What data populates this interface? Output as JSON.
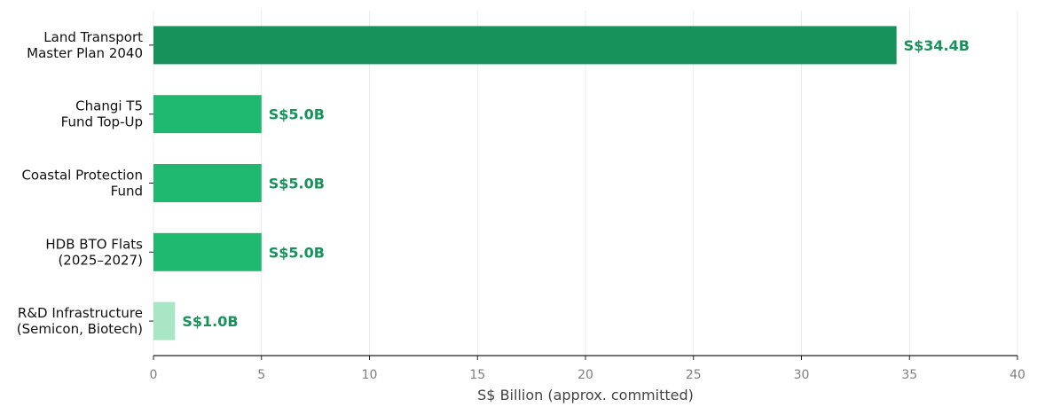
{
  "chart_data": {
    "type": "bar",
    "orientation": "horizontal",
    "title": "",
    "xlabel": "S$ Billion (approx. committed)",
    "ylabel": "",
    "xlim": [
      0,
      40
    ],
    "xticks": [
      0,
      5,
      10,
      15,
      20,
      25,
      30,
      35,
      40
    ],
    "grid": "vertical",
    "legend": "none",
    "categories": [
      [
        "Land Transport",
        "Master Plan 2040"
      ],
      [
        "Changi T5",
        "Fund Top-Up"
      ],
      [
        "Coastal Protection",
        "Fund"
      ],
      [
        "HDB BTO Flats",
        "(2025–2027)"
      ],
      [
        "R&D Infrastructure",
        "(Semicon, Biotech)"
      ]
    ],
    "values": [
      34.4,
      5.0,
      5.0,
      5.0,
      1.0
    ],
    "data_labels": [
      "S$34.4B",
      "S$5.0B",
      "S$5.0B",
      "S$5.0B",
      "S$1.0B"
    ],
    "bar_colors": [
      "#17925a",
      "#1eb96f",
      "#1eb96f",
      "#1eb96f",
      "#a8e6c5"
    ],
    "label_color": "#17925a",
    "gridline_color": "#ebebeb",
    "axis_color": "#222222"
  }
}
